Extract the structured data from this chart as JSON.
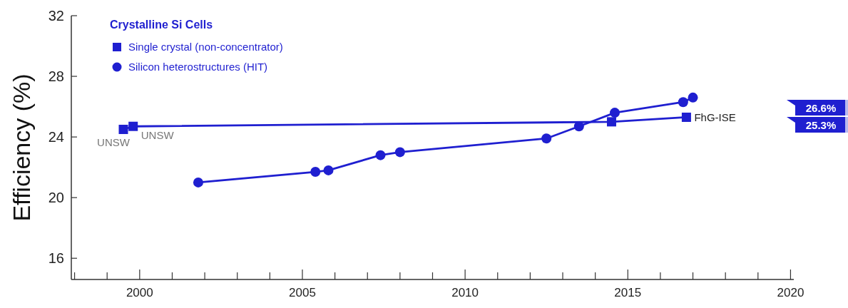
{
  "chart_data": {
    "type": "line",
    "ylabel": "Efficiency (%)",
    "legend_title": "Crystalline Si Cells",
    "legend": "top left",
    "xlim": [
      1997.9,
      2020.1
    ],
    "xticks": [
      {
        "value": 1998,
        "label": null
      },
      {
        "value": 1999,
        "label": null
      },
      2000,
      {
        "value": 2001,
        "label": null
      },
      {
        "value": 2002,
        "label": null
      },
      {
        "value": 2003,
        "label": null
      },
      {
        "value": 2004,
        "label": null
      },
      2005,
      {
        "value": 2006,
        "label": null
      },
      {
        "value": 2007,
        "label": null
      },
      {
        "value": 2008,
        "label": null
      },
      {
        "value": 2009,
        "label": null
      },
      2010,
      {
        "value": 2011,
        "label": null
      },
      {
        "value": 2012,
        "label": null
      },
      {
        "value": 2013,
        "label": null
      },
      {
        "value": 2014,
        "label": null
      },
      2015,
      {
        "value": 2016,
        "label": null
      },
      {
        "value": 2017,
        "label": null
      },
      {
        "value": 2018,
        "label": null
      },
      {
        "value": 2019,
        "label": null
      },
      2020
    ],
    "ylim": [
      14.6,
      32
    ],
    "yticks": [
      16,
      20,
      24,
      28,
      32
    ],
    "grid": false,
    "series": [
      {
        "name": "Single crystal (non-concentrator)",
        "color": "#1f1fd0",
        "marker": "square",
        "x": [
          1999.5,
          1999.8,
          2014.5,
          2016.8
        ],
        "values": [
          24.5,
          24.7,
          25.0,
          25.3
        ]
      },
      {
        "name": "Silicon heterostructures (HIT)",
        "color": "#1f1fd0",
        "marker": "circle",
        "x": [
          2001.8,
          2005.4,
          2005.8,
          2007.4,
          2008.0,
          2012.5,
          2013.5,
          2014.6,
          2016.7,
          2017.0
        ],
        "values": [
          21.0,
          21.7,
          21.8,
          22.8,
          23.0,
          23.9,
          24.7,
          25.6,
          26.3,
          26.6
        ]
      }
    ],
    "annotations": [
      {
        "text": "UNSW",
        "x": 1999.5,
        "y": 24.5
      },
      {
        "text": "UNSW",
        "x": 1999.8,
        "y": 24.7
      },
      {
        "text": "FhG-ISE",
        "x": 2016.8,
        "y": 25.3
      },
      "26.6%",
      "25.3%"
    ]
  }
}
